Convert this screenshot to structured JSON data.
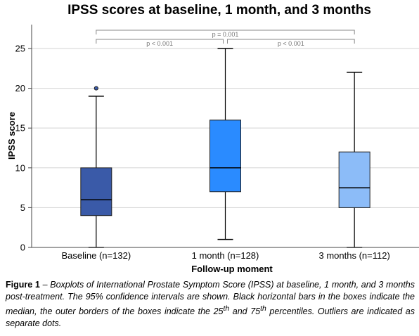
{
  "chart_data": {
    "type": "boxplot",
    "title": "IPSS scores at baseline, 1 month, and 3 months",
    "xlabel": "Follow-up moment",
    "ylabel": "IPSS score",
    "ylim": [
      0,
      28
    ],
    "yticks": [
      0,
      5,
      10,
      15,
      20,
      25
    ],
    "grid": true,
    "categories": [
      "Baseline (n=132)",
      "1 month (n=128)",
      "3 months (n=112)"
    ],
    "boxes": [
      {
        "min": 0,
        "q1": 4,
        "median": 6,
        "q3": 10,
        "max": 19,
        "outliers": [
          20
        ],
        "color": "#3a5aa8"
      },
      {
        "min": 1,
        "q1": 7,
        "median": 10,
        "q3": 16,
        "max": 25,
        "outliers": [],
        "color": "#2a8bff"
      },
      {
        "min": 0,
        "q1": 5,
        "median": 7.5,
        "q3": 12,
        "max": 22,
        "outliers": [],
        "color": "#8cbcf8"
      }
    ],
    "significance": [
      {
        "from": 0,
        "to": 1,
        "label": "p < 0.001"
      },
      {
        "from": 1,
        "to": 2,
        "label": "p < 0.001"
      },
      {
        "from": 0,
        "to": 2,
        "label": "p = 0.001"
      }
    ]
  },
  "caption": {
    "label": "Figure 1",
    "dash": " – ",
    "text_1": "Boxplots of International Prostate Symptom Score (IPSS) at baseline, 1 month, and 3 months post-treatment. The 95% confidence intervals are shown. Black horizontal bars in the boxes indicate the median, the outer borders of the boxes indicate the 25",
    "sup_1": "th",
    "text_2": " and 75",
    "sup_2": "th",
    "text_3": " percentiles. Outliers are indicated as separate dots."
  }
}
